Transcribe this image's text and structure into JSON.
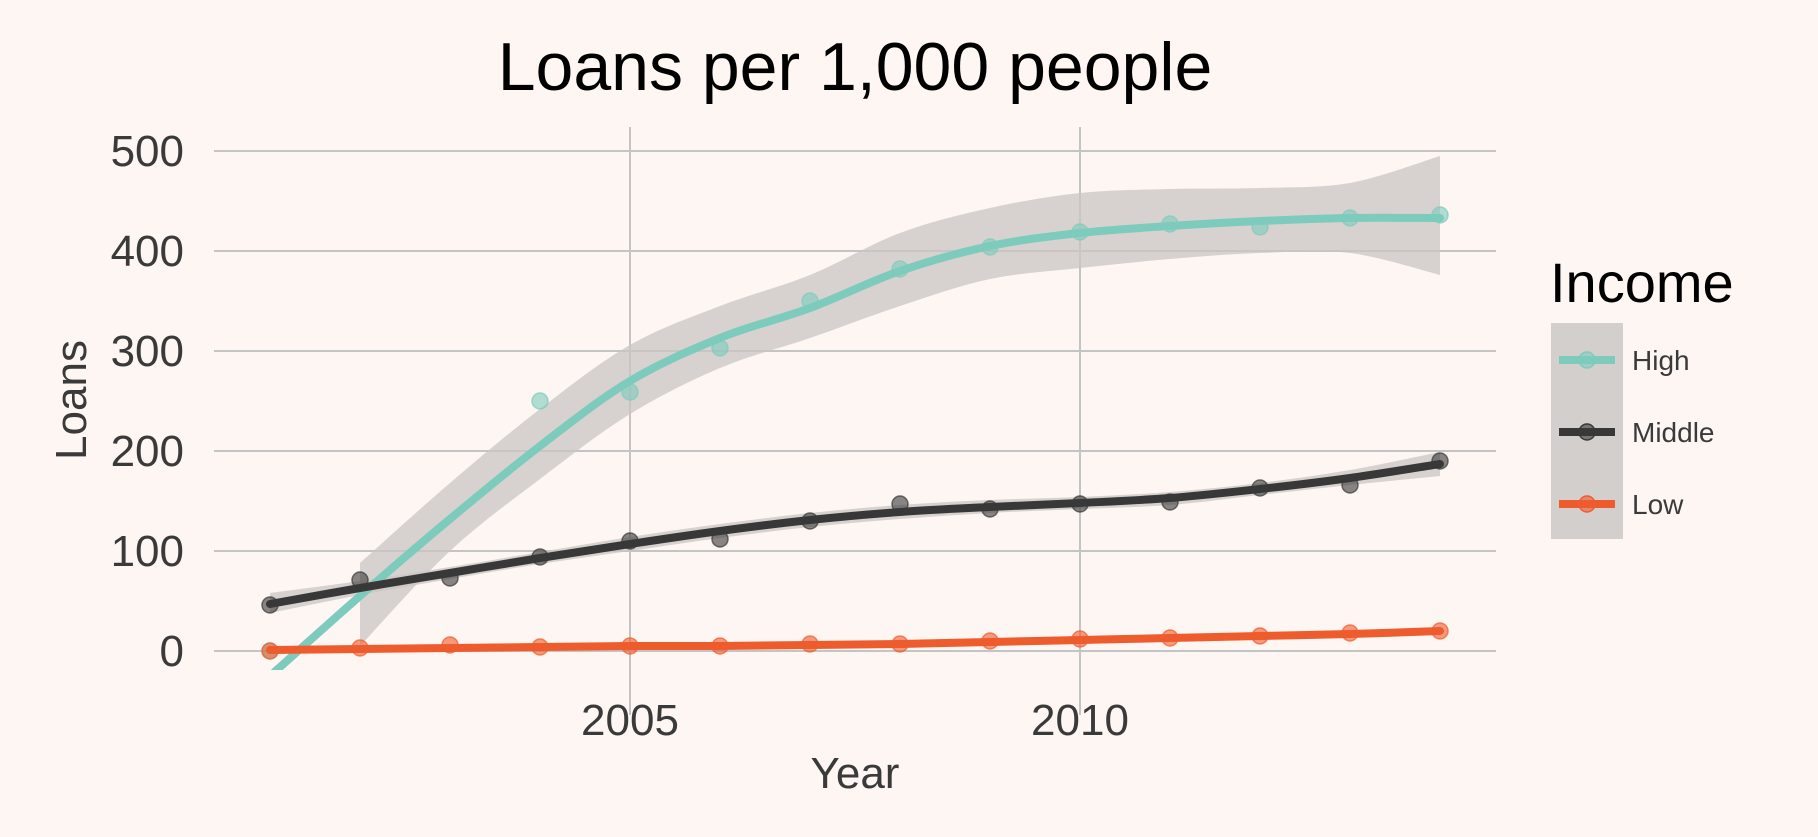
{
  "chart_data": {
    "type": "line",
    "title": "Loans per 1,000 people",
    "xlabel": "Year",
    "ylabel": "Loans",
    "xlim": [
      2000.6,
      2014.6
    ],
    "ylim": [
      -15,
      520
    ],
    "x_ticks": [
      2005,
      2010
    ],
    "y_ticks": [
      0,
      100,
      200,
      300,
      400,
      500
    ],
    "grid": true,
    "legend": {
      "title": "Income",
      "position": "right"
    },
    "x": [
      2001,
      2002,
      2003,
      2004,
      2005,
      2006,
      2007,
      2008,
      2009,
      2010,
      2011,
      2012,
      2013,
      2014
    ],
    "series": [
      {
        "name": "High",
        "color": "#7dcbbc",
        "values": [
          0,
          null,
          null,
          250,
          259,
          303,
          350,
          382,
          404,
          419,
          427,
          424,
          433,
          436
        ],
        "smooth": [
          -25,
          55,
          132,
          205,
          270,
          313,
          343,
          380,
          405,
          418,
          425,
          430,
          433,
          433
        ],
        "band_lower": [
          null,
          5,
          100,
          172,
          237,
          283,
          313,
          345,
          372,
          383,
          392,
          398,
          398,
          376
        ],
        "band_upper": [
          null,
          88,
          168,
          242,
          306,
          345,
          376,
          418,
          443,
          458,
          462,
          463,
          468,
          495
        ]
      },
      {
        "name": "Middle",
        "color": "#383838",
        "values": [
          46,
          71,
          73,
          94,
          110,
          112,
          130,
          147,
          142,
          147,
          149,
          163,
          166,
          190
        ],
        "smooth": [
          47,
          63,
          78,
          93,
          107,
          120,
          131,
          139,
          144,
          148,
          153,
          162,
          173,
          187
        ],
        "band_lower": [
          38,
          56,
          72,
          87,
          100,
          113,
          124,
          132,
          138,
          142,
          146,
          156,
          166,
          175
        ],
        "band_upper": [
          58,
          70,
          84,
          99,
          114,
          127,
          138,
          146,
          151,
          154,
          159,
          168,
          181,
          199
        ]
      },
      {
        "name": "Low",
        "color": "#ee5b2d",
        "values": [
          0,
          3,
          6,
          4,
          5,
          5,
          7,
          7,
          10,
          12,
          13,
          15,
          18,
          20
        ],
        "smooth": [
          1,
          2,
          3,
          4,
          5,
          5,
          6,
          7,
          9,
          11,
          13,
          15,
          17,
          20
        ],
        "band_lower": [
          0,
          1,
          2,
          3,
          4,
          4,
          5,
          6,
          8,
          10,
          12,
          14,
          16,
          18
        ],
        "band_upper": [
          2,
          3,
          4,
          5,
          6,
          6,
          7,
          8,
          10,
          12,
          14,
          16,
          18,
          22
        ]
      }
    ]
  }
}
